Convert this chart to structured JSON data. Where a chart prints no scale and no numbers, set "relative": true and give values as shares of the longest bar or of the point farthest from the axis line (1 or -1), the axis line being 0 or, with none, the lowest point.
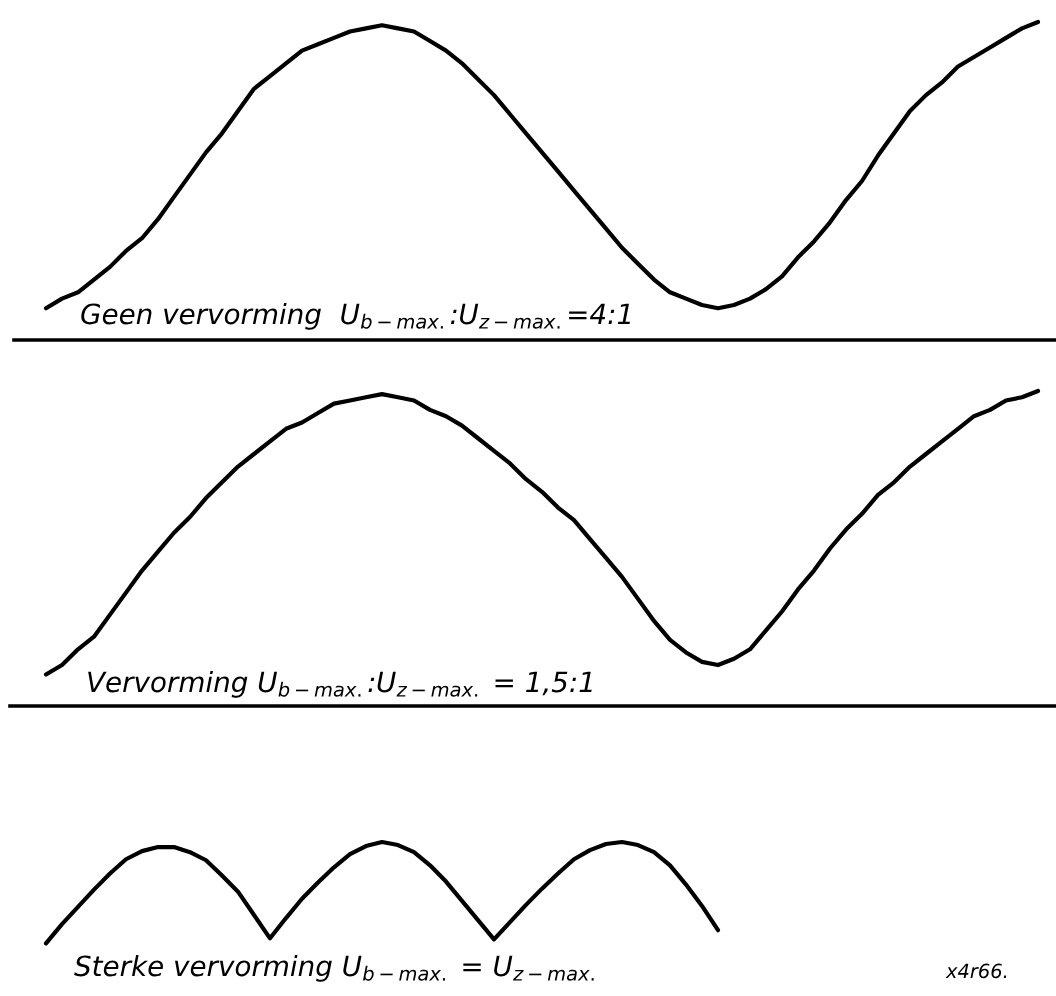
{
  "chart_data": [
    {
      "type": "line",
      "title": "Geen vervorming  U$_{b−max.}$:U$_{z−max.}$=4:1",
      "relative": true,
      "categories": [
        null,
        null,
        null,
        null,
        null,
        null,
        null,
        null,
        null,
        null,
        null,
        null,
        null,
        null,
        null,
        null,
        null,
        null,
        null,
        null,
        null,
        null,
        null,
        null,
        null,
        null,
        null,
        null,
        null,
        null,
        null,
        null,
        null,
        null,
        null,
        null,
        null,
        null,
        null,
        null,
        null,
        null,
        null,
        null,
        null,
        null,
        null,
        null,
        null,
        null,
        null,
        null,
        null,
        null,
        null,
        null,
        null,
        null,
        null,
        null,
        null,
        null,
        null
      ],
      "series": [
        {
          "color": "#000000",
          "values": [
            0.1,
            0.13,
            0.15,
            0.19,
            0.23,
            0.28,
            0.32,
            0.38,
            0.45,
            0.52,
            0.59,
            0.65,
            0.72,
            0.79,
            0.83,
            0.87,
            0.91,
            0.93,
            0.95,
            0.97,
            0.98,
            0.99,
            0.98,
            0.97,
            0.94,
            0.91,
            0.87,
            0.82,
            0.77,
            0.71,
            0.65,
            0.59,
            0.53,
            0.47,
            0.41,
            0.35,
            0.29,
            0.24,
            0.19,
            0.15,
            0.13,
            0.11,
            0.1,
            0.11,
            0.13,
            0.16,
            0.2,
            0.26,
            0.31,
            0.37,
            0.44,
            0.5,
            0.58,
            0.65,
            0.72,
            0.77,
            0.81,
            0.86,
            0.89,
            0.92,
            0.95,
            0.98,
            1.0
          ]
        }
      ]
    },
    {
      "type": "line",
      "title": "Vervorming U$_{b−max.}$:U$_{z−max.}$ = 1,5:1",
      "relative": true,
      "categories": [
        null,
        null,
        null,
        null,
        null,
        null,
        null,
        null,
        null,
        null,
        null,
        null,
        null,
        null,
        null,
        null,
        null,
        null,
        null,
        null,
        null,
        null,
        null,
        null,
        null,
        null,
        null,
        null,
        null,
        null,
        null,
        null,
        null,
        null,
        null,
        null,
        null,
        null,
        null,
        null,
        null,
        null,
        null,
        null,
        null,
        null,
        null,
        null,
        null,
        null,
        null,
        null,
        null,
        null,
        null,
        null,
        null,
        null,
        null,
        null,
        null,
        null,
        null
      ],
      "series": [
        {
          "color": "#000000",
          "values": [
            0.1,
            0.13,
            0.18,
            0.22,
            0.29,
            0.36,
            0.43,
            0.49,
            0.55,
            0.6,
            0.66,
            0.71,
            0.76,
            0.8,
            0.84,
            0.88,
            0.9,
            0.93,
            0.96,
            0.97,
            0.98,
            0.99,
            0.98,
            0.97,
            0.94,
            0.92,
            0.89,
            0.85,
            0.81,
            0.77,
            0.72,
            0.68,
            0.63,
            0.59,
            0.53,
            0.47,
            0.41,
            0.34,
            0.27,
            0.21,
            0.17,
            0.14,
            0.13,
            0.15,
            0.18,
            0.24,
            0.3,
            0.37,
            0.43,
            0.5,
            0.56,
            0.61,
            0.67,
            0.71,
            0.76,
            0.8,
            0.84,
            0.88,
            0.92,
            0.94,
            0.97,
            0.98,
            1.0
          ]
        }
      ]
    },
    {
      "type": "line",
      "title": "Sterke vervorming U$_{b−max.}$ = U$_{z−max.}$",
      "relative": true,
      "annotations": [
        "x4r66."
      ],
      "categories": [
        null,
        null,
        null,
        null,
        null,
        null,
        null,
        null,
        null,
        null,
        null,
        null,
        null,
        null,
        null,
        null,
        null,
        null,
        null,
        null,
        null,
        null,
        null,
        null,
        null,
        null,
        null,
        null,
        null,
        null,
        null,
        null,
        null,
        null,
        null,
        null,
        null,
        null,
        null,
        null,
        null,
        null,
        null,
        null,
        null,
        null,
        null,
        null,
        null,
        null,
        null,
        null,
        null,
        null,
        null,
        null,
        null,
        null,
        null,
        null,
        null,
        null,
        null
      ],
      "series": [
        {
          "color": "#000000",
          "values": [
            0.0,
            0.19,
            0.36,
            0.53,
            0.69,
            0.83,
            0.91,
            0.95,
            0.95,
            0.9,
            0.82,
            0.67,
            0.51,
            0.28,
            0.05,
            0.25,
            0.44,
            0.6,
            0.75,
            0.88,
            0.96,
            1.0,
            0.97,
            0.9,
            0.77,
            0.61,
            0.42,
            0.23,
            0.04,
            0.21,
            0.38,
            0.54,
            0.69,
            0.83,
            0.92,
            0.98,
            1.0,
            0.97,
            0.9,
            0.77,
            0.58,
            0.37,
            0.13,
            null,
            null,
            null,
            null,
            null,
            null,
            null,
            null,
            null,
            null,
            null,
            null,
            null,
            null,
            null,
            null,
            null,
            null,
            null,
            null
          ]
        }
      ]
    }
  ]
}
